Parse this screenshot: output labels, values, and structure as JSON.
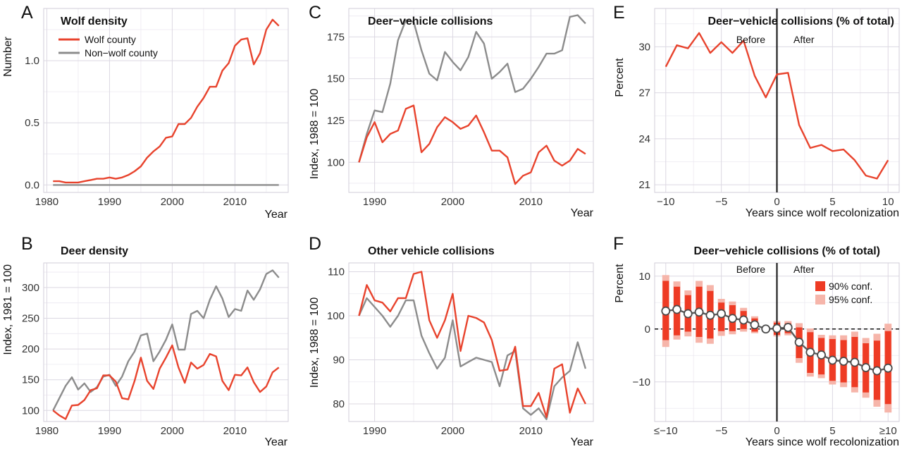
{
  "colors": {
    "wolf": "#e8432d",
    "nonwolf": "#8c8c8c",
    "ci90": "#ee3b24",
    "ci95": "#f6b5aa"
  },
  "panels": {
    "A": {
      "letter": "A",
      "title": "Wolf density",
      "xlabel": "Year",
      "ylabel": "Number",
      "xticks": [
        "1980",
        "1990",
        "2000",
        "2010"
      ],
      "yticks": [
        "0.0",
        "0.5",
        "1.0"
      ],
      "legend": {
        "wolf": "Wolf county",
        "nonwolf": "Non−wolf county"
      }
    },
    "B": {
      "letter": "B",
      "title": "Deer density",
      "xlabel": "Year",
      "ylabel": "Index, 1981 = 100",
      "xticks": [
        "1980",
        "1990",
        "2000",
        "2010"
      ],
      "yticks": [
        "100",
        "150",
        "200",
        "250",
        "300"
      ]
    },
    "C": {
      "letter": "C",
      "title": "Deer−vehicle collisions",
      "xlabel": "Year",
      "ylabel": "Index, 1988 = 100",
      "xticks": [
        "1990",
        "2000",
        "2010"
      ],
      "yticks": [
        "100",
        "125",
        "150",
        "175"
      ]
    },
    "D": {
      "letter": "D",
      "title": "Other vehicle collisions",
      "xlabel": "Year",
      "ylabel": "Index, 1988 = 100",
      "xticks": [
        "1990",
        "2000",
        "2010"
      ],
      "yticks": [
        "80",
        "90",
        "100",
        "110"
      ]
    },
    "E": {
      "letter": "E",
      "title": "Deer−vehicle collisions (% of total)",
      "xlabel": "Years since wolf recolonization",
      "ylabel": "Percent",
      "xticks": [
        "−10",
        "−5",
        "0",
        "5",
        "10"
      ],
      "yticks": [
        "21",
        "24",
        "27",
        "30"
      ],
      "before": "Before",
      "after": "After"
    },
    "F": {
      "letter": "F",
      "title": "Deer−vehicle collisions (% of total)",
      "xlabel": "Years since wolf recolonization",
      "ylabel": "Percent",
      "xticks": [
        "≤−10",
        "−5",
        "0",
        "5",
        "≥10"
      ],
      "yticks": [
        "−10",
        "0",
        "10"
      ],
      "before": "Before",
      "after": "After",
      "legend": {
        "ci90": "90% conf.",
        "ci95": "95% conf."
      }
    }
  },
  "chart_data": [
    {
      "panel": "A",
      "type": "line",
      "title": "Wolf density",
      "xlabel": "Year",
      "ylabel": "Number",
      "xlim": [
        1979.5,
        2018.5
      ],
      "ylim": [
        -0.06,
        1.42
      ],
      "x": [
        1981,
        1982,
        1983,
        1984,
        1985,
        1986,
        1987,
        1988,
        1989,
        1990,
        1991,
        1992,
        1993,
        1994,
        1995,
        1996,
        1997,
        1998,
        1999,
        2000,
        2001,
        2002,
        2003,
        2004,
        2005,
        2006,
        2007,
        2008,
        2009,
        2010,
        2011,
        2012,
        2013,
        2014,
        2015,
        2016,
        2017
      ],
      "series": [
        {
          "name": "Wolf county",
          "values": [
            0.03,
            0.03,
            0.02,
            0.02,
            0.02,
            0.03,
            0.04,
            0.05,
            0.05,
            0.06,
            0.05,
            0.06,
            0.08,
            0.11,
            0.15,
            0.22,
            0.27,
            0.31,
            0.38,
            0.39,
            0.49,
            0.49,
            0.54,
            0.63,
            0.7,
            0.79,
            0.79,
            0.92,
            0.98,
            1.12,
            1.17,
            1.18,
            0.97,
            1.06,
            1.25,
            1.33,
            1.28
          ]
        },
        {
          "name": "Non−wolf county",
          "values": [
            0,
            0,
            0,
            0,
            0,
            0,
            0,
            0,
            0,
            0,
            0,
            0,
            0,
            0,
            0,
            0,
            0,
            0,
            0,
            0,
            0,
            0,
            0,
            0,
            0,
            0,
            0,
            0,
            0,
            0,
            0,
            0,
            0,
            0,
            0,
            0,
            0
          ]
        }
      ]
    },
    {
      "panel": "B",
      "type": "line",
      "title": "Deer density",
      "xlabel": "Year",
      "ylabel": "Index, 1981 = 100",
      "xlim": [
        1979.5,
        2018.5
      ],
      "ylim": [
        82,
        340
      ],
      "x": [
        1981,
        1982,
        1983,
        1984,
        1985,
        1986,
        1987,
        1988,
        1989,
        1990,
        1991,
        1992,
        1993,
        1994,
        1995,
        1996,
        1997,
        1998,
        1999,
        2000,
        2001,
        2002,
        2003,
        2004,
        2005,
        2006,
        2007,
        2008,
        2009,
        2010,
        2011,
        2012,
        2013,
        2014,
        2015,
        2016,
        2017
      ],
      "series": [
        {
          "name": "Wolf county",
          "values": [
            100,
            92,
            86,
            108,
            109,
            117,
            133,
            136,
            157,
            157,
            147,
            120,
            118,
            148,
            186,
            148,
            135,
            168,
            186,
            206,
            170,
            145,
            178,
            168,
            174,
            192,
            188,
            148,
            133,
            158,
            157,
            170,
            146,
            130,
            139,
            162,
            170
          ]
        },
        {
          "name": "Non−wolf county",
          "values": [
            100,
            120,
            140,
            154,
            134,
            144,
            130,
            138,
            155,
            158,
            140,
            155,
            180,
            196,
            222,
            225,
            180,
            196,
            215,
            240,
            199,
            199,
            257,
            262,
            250,
            280,
            302,
            282,
            252,
            265,
            262,
            295,
            280,
            297,
            322,
            328,
            316
          ]
        }
      ]
    },
    {
      "panel": "C",
      "type": "line",
      "title": "Deer−vehicle collisions",
      "xlabel": "Year",
      "ylabel": "Index, 1988 = 100",
      "xlim": [
        1986.7,
        2018
      ],
      "ylim": [
        82,
        192
      ],
      "x": [
        1988,
        1989,
        1990,
        1991,
        1992,
        1993,
        1994,
        1995,
        1996,
        1997,
        1998,
        1999,
        2000,
        2001,
        2002,
        2003,
        2004,
        2005,
        2006,
        2007,
        2008,
        2009,
        2010,
        2011,
        2012,
        2013,
        2014,
        2015,
        2016,
        2017
      ],
      "series": [
        {
          "name": "Wolf county",
          "values": [
            100,
            115,
            124,
            112,
            117,
            119,
            132,
            134,
            106,
            111,
            121,
            127,
            124,
            120,
            122,
            128,
            118,
            107,
            107,
            103,
            87,
            92,
            94,
            106,
            110,
            101,
            98,
            101,
            108,
            105
          ]
        },
        {
          "name": "Non−wolf county",
          "values": [
            100,
            117,
            131,
            130,
            147,
            173,
            185,
            184,
            167,
            153,
            149,
            166,
            160,
            155,
            163,
            178,
            171,
            150,
            154,
            159,
            142,
            144,
            150,
            157,
            165,
            165,
            167,
            187,
            188,
            183
          ]
        }
      ]
    },
    {
      "panel": "D",
      "type": "line",
      "title": "Other vehicle collisions",
      "xlabel": "Year",
      "ylabel": "Index, 1988 = 100",
      "xlim": [
        1986.7,
        2018
      ],
      "ylim": [
        76,
        112
      ],
      "x": [
        1988,
        1989,
        1990,
        1991,
        1992,
        1993,
        1994,
        1995,
        1996,
        1997,
        1998,
        1999,
        2000,
        2001,
        2002,
        2003,
        2004,
        2005,
        2006,
        2007,
        2008,
        2009,
        2010,
        2011,
        2012,
        2013,
        2014,
        2015,
        2016,
        2017
      ],
      "series": [
        {
          "name": "Wolf county",
          "values": [
            100,
            107,
            103.5,
            103,
            101,
            104,
            104,
            109.5,
            110,
            99,
            95,
            99,
            105,
            92,
            100,
            99.5,
            98.5,
            94.5,
            87.5,
            87.8,
            93,
            79.5,
            79.5,
            82.5,
            77,
            88,
            89,
            78,
            83.5,
            80
          ]
        },
        {
          "name": "Non−wolf county",
          "values": [
            100,
            104,
            102,
            100,
            97.5,
            100,
            103.5,
            103.5,
            95.5,
            91.5,
            88,
            90.5,
            99,
            88.5,
            89.5,
            90.5,
            90,
            89.5,
            84,
            91,
            92,
            79,
            77.5,
            79,
            76.5,
            84,
            86,
            87.5,
            94,
            88
          ]
        }
      ]
    },
    {
      "panel": "E",
      "type": "line",
      "title": "Deer−vehicle collisions (% of total)",
      "xlabel": "Years since wolf recolonization",
      "ylabel": "Percent",
      "xlim": [
        -11,
        11
      ],
      "ylim": [
        20.5,
        32.5
      ],
      "x": [
        -10,
        -9,
        -8,
        -7,
        -6,
        -5,
        -4,
        -3,
        -2,
        -1,
        0,
        1,
        2,
        3,
        4,
        5,
        6,
        7,
        8,
        9,
        10
      ],
      "series": [
        {
          "name": "",
          "values": [
            28.7,
            30.1,
            29.9,
            30.9,
            29.6,
            30.3,
            29.6,
            30.4,
            28.1,
            26.7,
            28.2,
            28.3,
            24.9,
            23.4,
            23.6,
            23.2,
            23.3,
            22.6,
            21.6,
            21.4,
            22.6
          ]
        }
      ]
    },
    {
      "panel": "F",
      "type": "line",
      "title": "Deer−vehicle collisions (% of total)",
      "xlabel": "Years since wolf recolonization",
      "ylabel": "Percent",
      "xlim": [
        -11,
        11
      ],
      "ylim": [
        -17.5,
        12.5
      ],
      "x": [
        -10,
        -9,
        -8,
        -7,
        -6,
        -5,
        -4,
        -3,
        -2,
        -1,
        0,
        1,
        2,
        3,
        4,
        5,
        6,
        7,
        8,
        9,
        10
      ],
      "estimate": [
        3.4,
        3.7,
        2.9,
        3.2,
        2.6,
        2.9,
        2.0,
        1.7,
        0.8,
        0,
        0.1,
        0.3,
        -2.5,
        -4.4,
        -4.9,
        -5.9,
        -6.1,
        -6.3,
        -7.3,
        -7.9,
        -7.4
      ],
      "ci90_low": [
        -2.1,
        -1.2,
        -0.5,
        -1.5,
        -1.8,
        -0.4,
        -0.4,
        0,
        -0.5,
        0,
        -1.1,
        -0.8,
        -5.5,
        -8.3,
        -8.6,
        -9.8,
        -10.1,
        -11.0,
        -12.0,
        -13.4,
        -14.2
      ],
      "ci90_high": [
        9.1,
        8.0,
        6.4,
        8.0,
        7.2,
        5.0,
        4.5,
        3.4,
        2.0,
        0,
        1.2,
        1.1,
        0.3,
        -0.6,
        -1.7,
        -1.9,
        -2.1,
        -1.5,
        -2.7,
        -2.2,
        -0.4
      ],
      "ci95_low": [
        -3.4,
        -2.0,
        -1.4,
        -2.6,
        -2.8,
        -1.3,
        -1.0,
        -0.5,
        -0.8,
        0,
        -1.4,
        -1.2,
        -6.4,
        -9.0,
        -9.3,
        -10.5,
        -11.0,
        -12.0,
        -13.0,
        -14.7,
        -15.8
      ],
      "ci95_high": [
        10.2,
        9.0,
        7.3,
        9.1,
        8.3,
        5.7,
        5.2,
        4.0,
        2.4,
        0,
        1.5,
        1.5,
        1.1,
        0.1,
        -1.1,
        -1.2,
        -1.2,
        -0.5,
        -1.7,
        -0.9,
        1.0
      ],
      "legend": [
        "90% conf.",
        "95% conf."
      ]
    }
  ]
}
